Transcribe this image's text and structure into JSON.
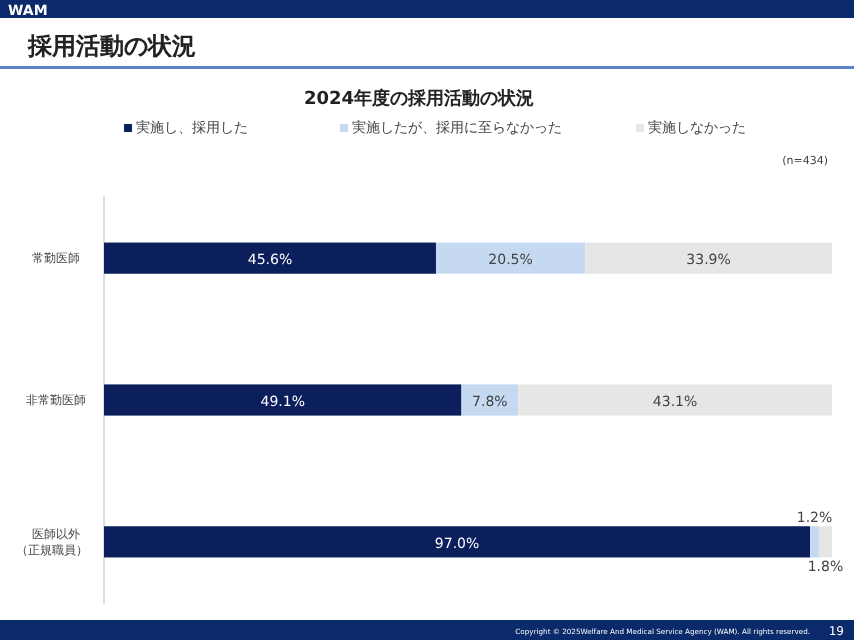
{
  "chart_data": {
    "type": "bar",
    "orientation": "horizontal",
    "stacked": true,
    "title": "2024年度の採用活動の状況",
    "subtitle": "採用活動の状況",
    "categories": [
      "常勤医師",
      "非常勤医師",
      "医師以外（正規職員）"
    ],
    "series": [
      {
        "name": "実施し、採用した",
        "color": "#0b1f5c",
        "values": [
          45.6,
          49.1,
          97.0
        ],
        "value_labels": [
          "45.6%",
          "49.1%",
          "97.0%"
        ]
      },
      {
        "name": "実施したが、採用に至らなかった",
        "color": "#c5d9f1",
        "values": [
          20.5,
          7.8,
          1.2
        ],
        "value_labels": [
          "20.5%",
          "7.8%",
          "1.2%"
        ]
      },
      {
        "name": "実施しなかった",
        "color": "#e6e6e6",
        "values": [
          33.9,
          43.1,
          1.8
        ],
        "value_labels": [
          "33.9%",
          "43.1%",
          "1.8%"
        ]
      }
    ],
    "xlim": [
      0,
      100
    ],
    "tick_labels": "y",
    "legend": "top",
    "annotations": [
      "(n=434)",
      "WAM",
      "Copyright © 2025Welfare And Medical Service Agency (WAM). All rights reserved.",
      "19"
    ]
  }
}
